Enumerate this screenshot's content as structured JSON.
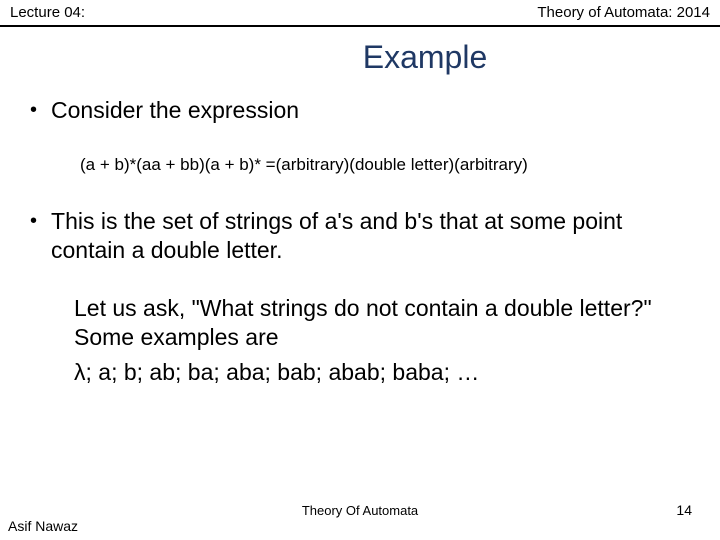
{
  "header": {
    "left": "Lecture 04:",
    "right": "Theory of Automata: 2014"
  },
  "title": "Example",
  "bullet1": "Consider the expression",
  "expression": "(a + b)*(aa + bb)(a + b)* =(arbitrary)(double letter)(arbitrary)",
  "bullet2": "This is the set of strings of a's and b's that at some point contain a double letter.",
  "question": " Let us ask, \"What strings do not contain a double letter?\" Some examples are",
  "examples": "λ; a; b; ab; ba; aba; bab; abab; baba; …",
  "footer": {
    "center": "Theory Of Automata",
    "left": "Asif Nawaz",
    "page": "14"
  },
  "colors": {
    "title_color": "#1f3864",
    "text_color": "#000000",
    "border_color": "#000000",
    "background": "#ffffff"
  },
  "fonts": {
    "title_size": 32,
    "body_size": 23,
    "expression_size": 17,
    "header_size": 15,
    "footer_size": 13
  }
}
